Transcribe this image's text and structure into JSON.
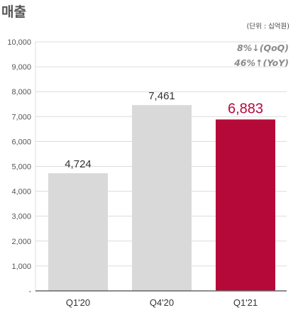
{
  "title": "매출",
  "unit_note": "(단위 : 십억원)",
  "annotations": {
    "qoq": "8%↓(QoQ)",
    "yoy": "46%↑(YoY)"
  },
  "colors": {
    "bar_default": "#d9d9d9",
    "bar_highlight": "#b5093a",
    "highlight_label": "#b5093a",
    "axis": "#666666",
    "gridline": "#dcdcdc"
  },
  "chart_data": {
    "type": "bar",
    "title": "매출",
    "xlabel": "",
    "ylabel": "",
    "categories": [
      "Q1'20",
      "Q4'20",
      "Q1'21"
    ],
    "values": [
      4724,
      7461,
      6883
    ],
    "value_labels": [
      "4,724",
      "7,461",
      "6,883"
    ],
    "highlight_index": 2,
    "ylim": [
      0,
      10000
    ],
    "yticks": [
      0,
      1000,
      2000,
      3000,
      4000,
      5000,
      6000,
      7000,
      8000,
      9000,
      10000
    ],
    "ytick_labels": [
      "-",
      "1,000",
      "2,000",
      "3,000",
      "4,000",
      "5,000",
      "6,000",
      "7,000",
      "8,000",
      "9,000",
      "10,000"
    ],
    "grid": true
  }
}
